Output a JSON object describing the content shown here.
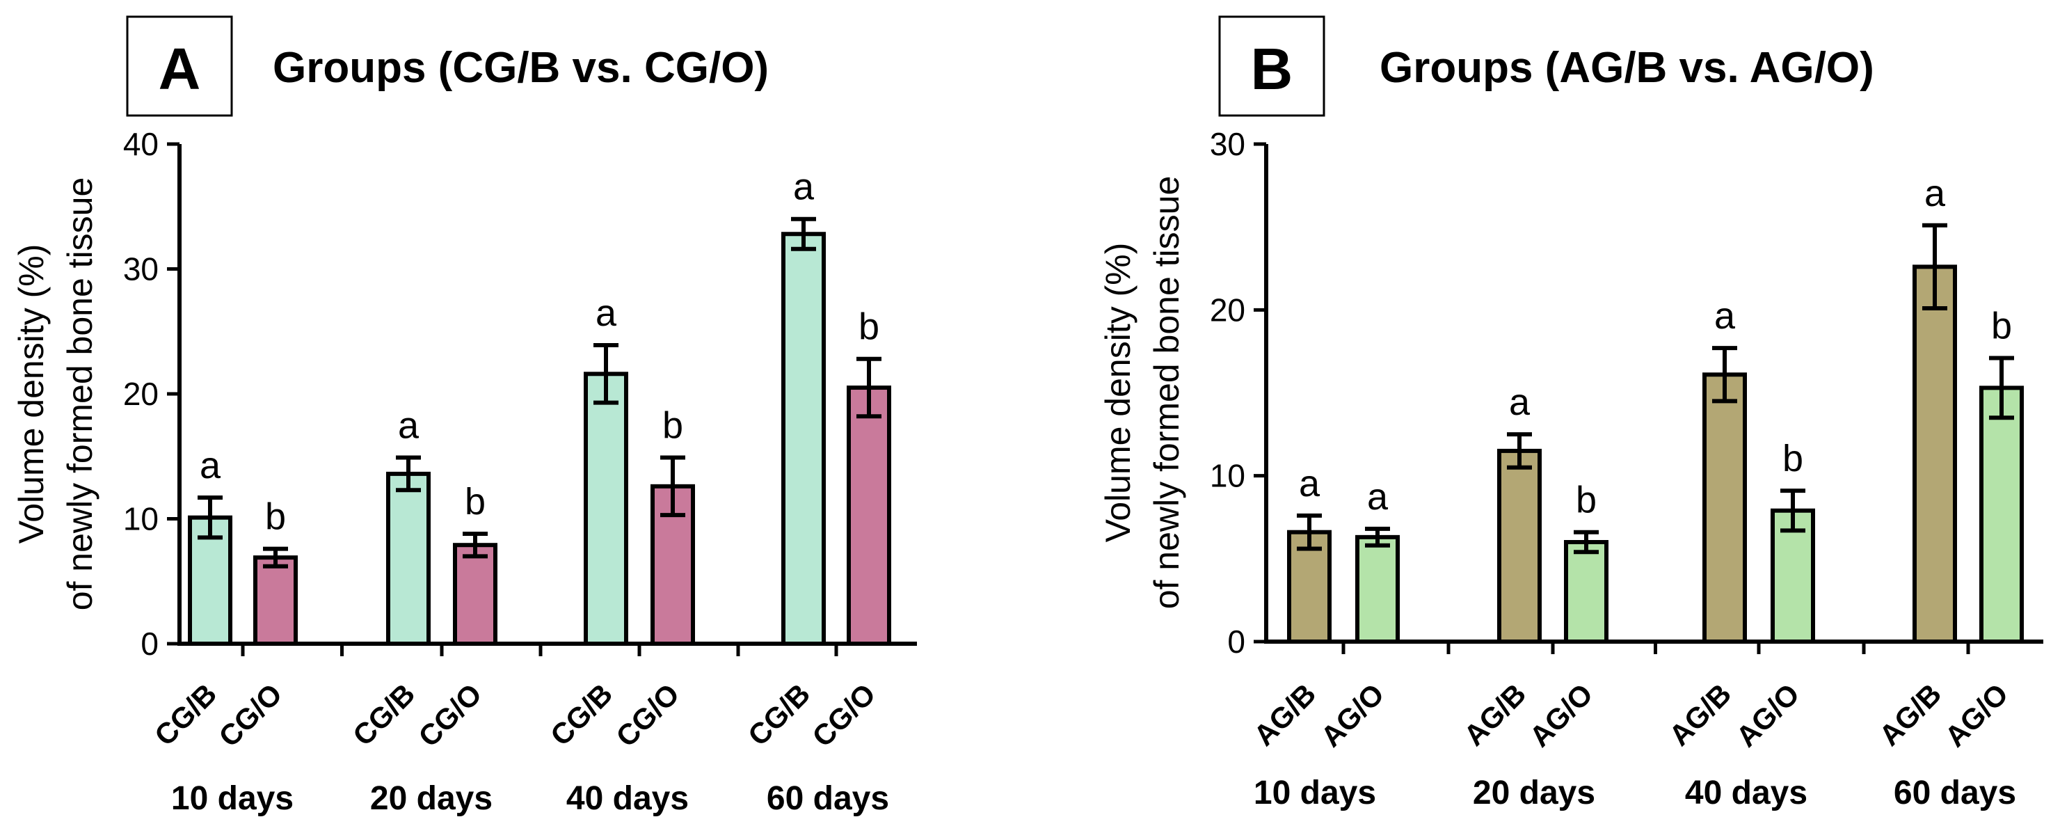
{
  "chart_data": [
    {
      "type": "bar",
      "panel_label": "A",
      "title": "Groups (CG/B vs. CG/O)",
      "ylabel_line1": "Volume density (%)",
      "ylabel_line2": "of newly formed bone tissue",
      "ylim": [
        0,
        40
      ],
      "yticks": [
        0,
        10,
        20,
        30,
        40
      ],
      "groups": [
        "10 days",
        "20 days",
        "40 days",
        "60 days"
      ],
      "series": [
        {
          "name": "CG/B",
          "color": "#b8e8d4",
          "values": [
            10.1,
            13.6,
            21.6,
            32.8
          ],
          "errors": [
            1.6,
            1.3,
            2.3,
            1.2
          ],
          "labels": [
            "a",
            "a",
            "a",
            "a"
          ]
        },
        {
          "name": "CG/O",
          "color": "#c97a9b",
          "values": [
            6.9,
            7.9,
            12.6,
            20.5
          ],
          "errors": [
            0.7,
            0.9,
            2.3,
            2.3
          ],
          "labels": [
            "b",
            "b",
            "b",
            "b"
          ]
        }
      ]
    },
    {
      "type": "bar",
      "panel_label": "B",
      "title": "Groups (AG/B vs. AG/O)",
      "ylabel_line1": "Volume density (%)",
      "ylabel_line2": "of newly formed bone tissue",
      "ylim": [
        0,
        30
      ],
      "yticks": [
        0,
        10,
        20,
        30
      ],
      "groups": [
        "10 days",
        "20 days",
        "40 days",
        "60 days"
      ],
      "series": [
        {
          "name": "AG/B",
          "color": "#b3a774",
          "values": [
            6.6,
            11.5,
            16.1,
            22.6
          ],
          "errors": [
            1.0,
            1.0,
            1.6,
            2.5
          ],
          "labels": [
            "a",
            "a",
            "a",
            "a"
          ]
        },
        {
          "name": "AG/O",
          "color": "#b4e3a9",
          "values": [
            6.3,
            6.0,
            7.9,
            15.3
          ],
          "errors": [
            0.5,
            0.6,
            1.2,
            1.8
          ],
          "labels": [
            "a",
            "b",
            "b",
            "b"
          ]
        }
      ]
    }
  ]
}
